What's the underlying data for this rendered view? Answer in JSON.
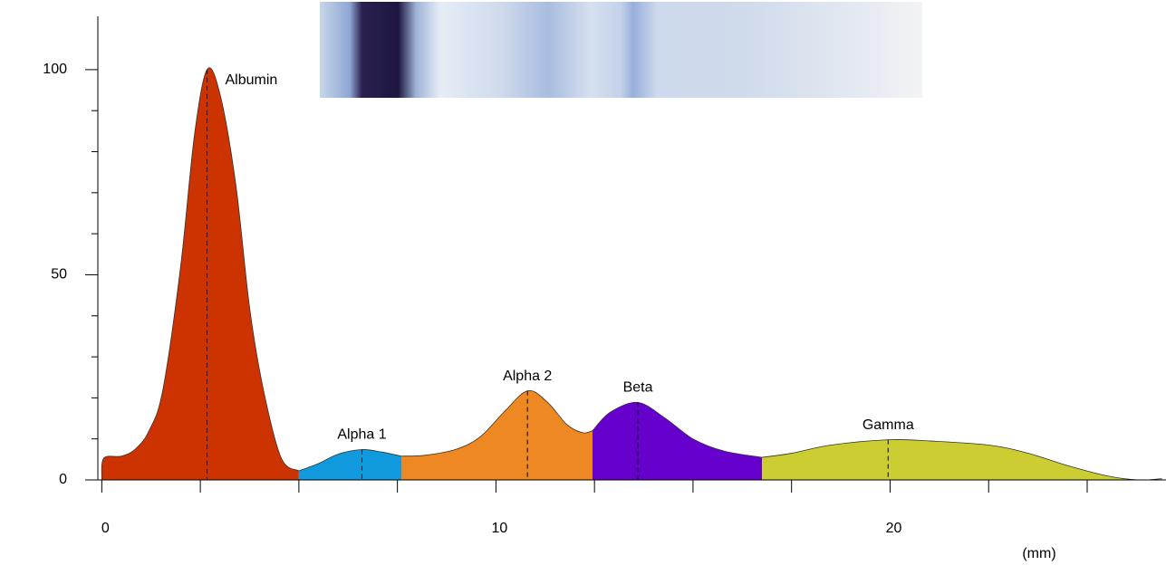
{
  "chart_data": {
    "type": "area",
    "x_label": "(mm)",
    "xlim": [
      -0.1,
      27
    ],
    "ylim": [
      0,
      113
    ],
    "xticks": [
      0,
      10,
      20
    ],
    "xminor_ticks": [
      2.5,
      5,
      7.5,
      12.5,
      15,
      17.5,
      22.5,
      25
    ],
    "yticks": [
      0,
      50,
      100
    ],
    "yminor_ticks": [
      10,
      20,
      30,
      40,
      60,
      70,
      80,
      90
    ],
    "series": [
      {
        "name": "Albumin",
        "color": "#cc3300",
        "x": [
          0,
          0.05,
          0.5,
          0.85,
          1.2,
          1.55,
          2.0,
          2.35,
          2.67,
          3.0,
          3.4,
          3.75,
          4.1,
          4.55,
          5.0
        ],
        "values": [
          0,
          5.3,
          5.8,
          7.5,
          12,
          22,
          52,
          84,
          100,
          94,
          72,
          42,
          22,
          5.4,
          2.2
        ]
      },
      {
        "name": "Alpha 1",
        "color": "#1199dd",
        "x": [
          5.0,
          5.5,
          6.0,
          6.6,
          7.1,
          7.6
        ],
        "values": [
          2.2,
          4,
          6.3,
          7.4,
          6.8,
          5.8
        ]
      },
      {
        "name": "Alpha 2",
        "color": "#ee8822",
        "x": [
          7.6,
          8.2,
          9.0,
          9.6,
          10.2,
          10.8,
          11.3,
          11.8,
          12.2,
          12.45
        ],
        "values": [
          5.8,
          6,
          7.5,
          10.5,
          16.5,
          21.7,
          19,
          13.5,
          11.5,
          12
        ]
      },
      {
        "name": "Beta",
        "color": "#6600cc",
        "x": [
          12.45,
          12.9,
          13.6,
          14.3,
          15.0,
          15.8,
          16.75
        ],
        "values": [
          12,
          16.5,
          18.9,
          15,
          10,
          7,
          5.5
        ]
      },
      {
        "name": "Gamma",
        "color": "#cccc33",
        "x": [
          16.75,
          17.5,
          18.5,
          19.95,
          21.0,
          22.5,
          23.5,
          24.5,
          25.5,
          26.3,
          26.9
        ],
        "values": [
          5.5,
          6.5,
          8.5,
          9.8,
          9.5,
          8.5,
          6.5,
          3.5,
          1,
          0,
          0.3
        ]
      }
    ]
  }
}
